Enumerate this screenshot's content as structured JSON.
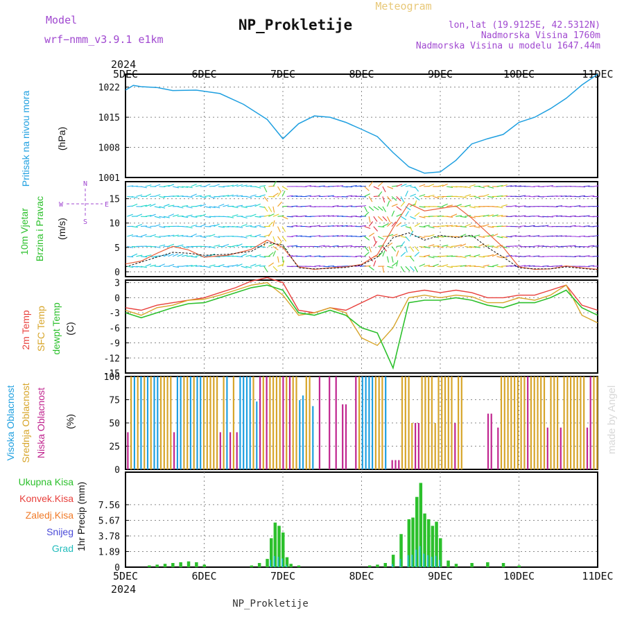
{
  "header": {
    "model_label": "Model",
    "model_name": "wrf−nmm_v3.9.1 e1km",
    "title": "NP_Prokletije",
    "meteogram_label": "Meteogram",
    "lonlat": "lon,lat (19.9125E, 42.5312N)",
    "elevation": "Nadmorska Visina 1760m",
    "model_elevation": "Nadmorska Visina u modelu 1647.44m",
    "year_top": "2024",
    "year_bottom": "2024",
    "footer": "NP_Prokletije",
    "watermark": "made by Angel"
  },
  "days": [
    "5DEC",
    "6DEC",
    "7DEC",
    "8DEC",
    "9DEC",
    "10DEC",
    "11DEC"
  ],
  "colors": {
    "pressure": "#1e9fe0",
    "temp2m": "#e8403c",
    "sfc": "#d7a52a",
    "dewpt": "#2cc02c",
    "high_cloud": "#1e9fe0",
    "mid_cloud": "#d7a52a",
    "low_cloud": "#c0258f",
    "precip_total": "#2cc02c",
    "precip_conv": "#e8403c",
    "precip_frz": "#f07a28",
    "snow": "#4a4ad8",
    "graupel": "#22bcbc",
    "purple_text": "#a048d0",
    "gold_text": "#e8c878"
  },
  "chart_data": [
    {
      "panel": "pressure",
      "type": "line",
      "ylabel_main": "Pritisak na nivou mora",
      "ylabel_unit": "(hPa)",
      "ylim": [
        1001,
        1025
      ],
      "yticks": [
        "1001",
        "1008",
        "1015",
        "1022"
      ],
      "x": [
        0,
        0.1,
        0.2,
        0.4,
        0.6,
        0.9,
        1.2,
        1.5,
        1.8,
        2.0,
        2.2,
        2.4,
        2.6,
        2.8,
        3.0,
        3.2,
        3.4,
        3.6,
        3.8,
        4.0,
        4.2,
        4.4,
        4.6,
        4.8,
        5.0,
        5.2,
        5.4,
        5.6,
        5.8,
        6.0
      ],
      "series": [
        {
          "values": [
            1021.3,
            1022.4,
            1022.1,
            1021.9,
            1021.2,
            1021.3,
            1020.5,
            1018.0,
            1014.5,
            1010.0,
            1013.5,
            1015.3,
            1015.0,
            1013.8,
            1012.2,
            1010.5,
            1006.8,
            1003.5,
            1002.0,
            1002.3,
            1005.0,
            1008.8,
            1010.0,
            1011.0,
            1013.8,
            1015.0,
            1017.0,
            1019.4,
            1022.5,
            1025.0
          ]
        }
      ]
    },
    {
      "panel": "wind",
      "type": "line",
      "ylabel_main": "10m Vjetar",
      "ylabel_sub": "Brzina i Pravac",
      "ylabel_unit": "(m/s)",
      "compass": {
        "n": "N",
        "s": "S",
        "e": "E",
        "w": "W"
      },
      "ylim": [
        -1,
        18.5
      ],
      "yticks": [
        "0",
        "5",
        "10",
        "15"
      ],
      "x": [
        0,
        0.2,
        0.4,
        0.6,
        0.8,
        1.0,
        1.3,
        1.6,
        1.8,
        2.0,
        2.2,
        2.4,
        2.6,
        2.8,
        3.0,
        3.2,
        3.4,
        3.6,
        3.8,
        4.0,
        4.2,
        4.4,
        4.6,
        4.8,
        5.0,
        5.2,
        5.4,
        5.6,
        5.8,
        6.0
      ],
      "series": [
        {
          "values": [
            1.6,
            2.2,
            3.8,
            5.2,
            4.5,
            3.0,
            3.4,
            4.6,
            6.5,
            5.0,
            1.0,
            0.5,
            0.8,
            1.0,
            1.5,
            3.5,
            9.0,
            14.0,
            12.5,
            13.0,
            13.5,
            11.0,
            8.0,
            5.0,
            1.0,
            0.5,
            0.6,
            1.2,
            0.8,
            0.5
          ]
        },
        {
          "values": [
            1.0,
            2.0,
            3.0,
            4.0,
            3.8,
            3.4,
            3.6,
            4.2,
            6.0,
            5.5,
            0.8,
            0.6,
            0.7,
            0.9,
            1.4,
            3.0,
            7.0,
            8.0,
            6.5,
            7.5,
            7.0,
            7.5,
            5.0,
            3.0,
            0.8,
            0.6,
            0.6,
            1.0,
            0.7,
            0.4
          ]
        }
      ]
    },
    {
      "panel": "temperature",
      "type": "line",
      "ylabel_main": "2m Temp",
      "ylabel_sub": "SFC Temp",
      "ylabel_sub2": "dewpt Temp",
      "ylabel_unit": "(C)",
      "ylim": [
        -15,
        3.5
      ],
      "yticks": [
        "-15",
        "-12",
        "-9",
        "-6",
        "-3",
        "0",
        "3"
      ],
      "x": [
        0,
        0.2,
        0.4,
        0.6,
        0.8,
        1.0,
        1.2,
        1.4,
        1.6,
        1.8,
        2.0,
        2.2,
        2.4,
        2.6,
        2.8,
        3.0,
        3.2,
        3.4,
        3.6,
        3.8,
        4.0,
        4.2,
        4.4,
        4.6,
        4.8,
        5.0,
        5.2,
        5.4,
        5.6,
        5.8,
        6.0
      ],
      "series": [
        {
          "values": [
            -2.0,
            -2.5,
            -1.5,
            -1.0,
            -0.5,
            0.0,
            1.0,
            2.0,
            3.3,
            4.0,
            3.0,
            -2.5,
            -3.0,
            -2.0,
            -2.5,
            -1.0,
            0.5,
            0.0,
            1.0,
            1.5,
            1.0,
            1.5,
            1.0,
            0.0,
            0.0,
            0.5,
            0.5,
            1.5,
            2.5,
            -1.5,
            -2.5
          ]
        },
        {
          "values": [
            -2.5,
            -3.5,
            -2.0,
            -1.5,
            -0.5,
            -0.3,
            0.5,
            1.5,
            2.5,
            3.0,
            0.5,
            -3.5,
            -3.0,
            -2.0,
            -3.0,
            -8.0,
            -9.5,
            -6.0,
            0.0,
            0.5,
            0.0,
            0.5,
            0.2,
            -1.0,
            -1.0,
            0.0,
            -0.5,
            0.5,
            2.5,
            -3.5,
            -5.0
          ]
        },
        {
          "values": [
            -3.0,
            -4.0,
            -3.0,
            -2.0,
            -1.2,
            -1.0,
            0.0,
            1.0,
            2.0,
            2.5,
            1.5,
            -3.0,
            -3.5,
            -2.5,
            -3.5,
            -6.0,
            -7.0,
            -14.0,
            -1.0,
            -0.5,
            -0.5,
            0.0,
            -0.5,
            -1.5,
            -2.0,
            -1.0,
            -1.0,
            0.0,
            1.5,
            -2.0,
            -3.5
          ]
        }
      ]
    },
    {
      "panel": "cloud",
      "type": "bar",
      "ylabel_main": "Visoka Oblacnost",
      "ylabel_sub": "Srednja Oblacnost",
      "ylabel_sub2": "Niska Oblacnost",
      "ylabel_unit": "(%)",
      "ylim": [
        0,
        100
      ],
      "yticks": [
        "0",
        "25",
        "50",
        "75",
        "100"
      ]
    },
    {
      "panel": "precip",
      "type": "bar",
      "ylabel_unit": "1hr Precip (mm)",
      "legend": [
        "Ukupna Kisa",
        "Konvek.Kisa",
        "Zaledj.Kisa",
        "Snijeg",
        "Grad"
      ],
      "ylim": [
        0,
        11.5
      ],
      "yticks": [
        "0",
        "1.89",
        "3.78",
        "5.67",
        "7.56"
      ],
      "x": [
        0.3,
        0.4,
        0.5,
        0.6,
        0.7,
        0.8,
        0.9,
        1.0,
        1.6,
        1.7,
        1.8,
        1.85,
        1.9,
        1.95,
        2.0,
        2.05,
        2.1,
        2.2,
        3.1,
        3.2,
        3.3,
        3.4,
        3.5,
        3.6,
        3.65,
        3.7,
        3.75,
        3.8,
        3.85,
        3.9,
        3.95,
        4.0,
        4.1,
        4.2,
        4.4,
        4.6,
        4.8,
        5.0
      ],
      "series": [
        {
          "values": [
            0.2,
            0.3,
            0.4,
            0.5,
            0.6,
            0.7,
            0.6,
            0.3,
            0.2,
            0.5,
            1.0,
            3.5,
            5.4,
            5.0,
            4.2,
            1.2,
            0.4,
            0.2,
            0.2,
            0.3,
            0.5,
            1.5,
            4.0,
            5.8,
            6.0,
            8.5,
            10.2,
            6.5,
            5.8,
            5.0,
            5.5,
            3.5,
            0.8,
            0.4,
            0.5,
            0.6,
            0.5,
            0.2
          ]
        }
      ]
    }
  ]
}
